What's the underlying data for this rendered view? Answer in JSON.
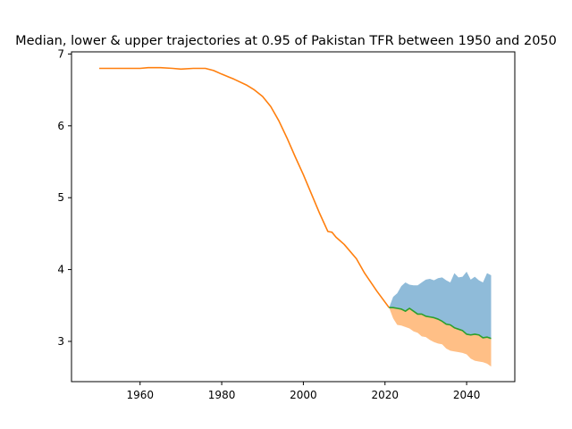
{
  "chart_data": {
    "type": "line",
    "title": "Median, lower & upper trajectories at 0.95 of Pakistan TFR between 1950 and 2050",
    "xlabel": "",
    "ylabel": "",
    "xlim": [
      1943.2,
      2051.8
    ],
    "ylim": [
      2.44,
      7.03
    ],
    "xticks": [
      1960,
      1980,
      2000,
      2020,
      2040
    ],
    "yticks": [
      3,
      4,
      5,
      6,
      7
    ],
    "grid": false,
    "colors": {
      "historical": "#ff7f0e",
      "median": "#2ca02c",
      "upper_band": "#1f77b4",
      "lower_band": "#ff7f0e"
    },
    "series": [
      {
        "key": "historical",
        "x": [
          1950,
          1955,
          1960,
          1962,
          1965,
          1968,
          1970,
          1973,
          1976,
          1978,
          1980,
          1983,
          1986,
          1988,
          1990,
          1992,
          1994,
          1996,
          1998,
          2000,
          2002,
          2004,
          2006,
          2007,
          2008,
          2010,
          2013,
          2015,
          2018,
          2021
        ],
        "values": [
          6.8,
          6.8,
          6.8,
          6.81,
          6.81,
          6.8,
          6.79,
          6.8,
          6.8,
          6.77,
          6.72,
          6.65,
          6.57,
          6.5,
          6.41,
          6.27,
          6.07,
          5.83,
          5.57,
          5.32,
          5.05,
          4.78,
          4.53,
          4.52,
          4.45,
          4.35,
          4.15,
          3.95,
          3.7,
          3.47
        ]
      },
      {
        "key": "median",
        "x": [
          2021,
          2022,
          2023,
          2024,
          2025,
          2026,
          2027,
          2028,
          2029,
          2030,
          2031,
          2032,
          2033,
          2034,
          2035,
          2036,
          2037,
          2038,
          2039,
          2040,
          2041,
          2042,
          2043,
          2044,
          2045,
          2046
        ],
        "values": [
          3.47,
          3.47,
          3.46,
          3.45,
          3.42,
          3.46,
          3.42,
          3.38,
          3.38,
          3.35,
          3.34,
          3.33,
          3.31,
          3.28,
          3.24,
          3.23,
          3.19,
          3.17,
          3.15,
          3.1,
          3.09,
          3.1,
          3.09,
          3.05,
          3.06,
          3.04
        ]
      }
    ],
    "band": {
      "x": [
        2021,
        2022,
        2023,
        2024,
        2025,
        2026,
        2027,
        2028,
        2029,
        2030,
        2031,
        2032,
        2033,
        2034,
        2035,
        2036,
        2037,
        2038,
        2039,
        2040,
        2041,
        2042,
        2043,
        2044,
        2045,
        2046
      ],
      "upper": [
        3.47,
        3.62,
        3.67,
        3.77,
        3.82,
        3.79,
        3.78,
        3.78,
        3.82,
        3.86,
        3.87,
        3.85,
        3.88,
        3.89,
        3.85,
        3.82,
        3.95,
        3.89,
        3.9,
        3.97,
        3.86,
        3.9,
        3.85,
        3.82,
        3.95,
        3.92
      ],
      "lower": [
        3.47,
        3.32,
        3.23,
        3.22,
        3.2,
        3.18,
        3.14,
        3.12,
        3.07,
        3.06,
        3.02,
        2.99,
        2.97,
        2.96,
        2.9,
        2.87,
        2.86,
        2.85,
        2.84,
        2.82,
        2.76,
        2.73,
        2.72,
        2.71,
        2.69,
        2.65
      ]
    }
  }
}
